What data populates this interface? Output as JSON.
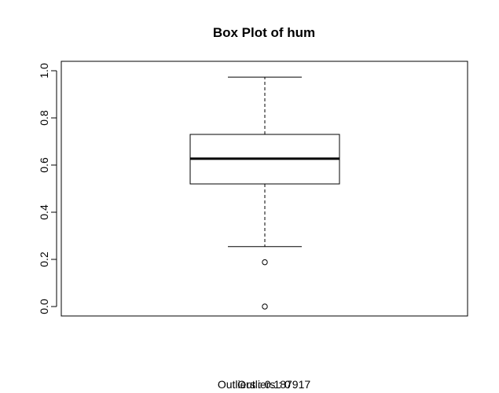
{
  "chart_data": {
    "type": "box",
    "title": "Box Plot of  hum",
    "xlabel": "",
    "ylabel": "",
    "ylim": [
      0.0,
      1.0
    ],
    "y_ticks": [
      0.0,
      0.2,
      0.4,
      0.6,
      0.8,
      1.0
    ],
    "y_tick_labels": [
      "0.0",
      "0.2",
      "0.4",
      "0.6",
      "0.8",
      "1.0"
    ],
    "grid": false,
    "box": {
      "min_whisker": 0.254,
      "q1": 0.52,
      "median": 0.627,
      "q3": 0.73,
      "max_whisker": 0.973,
      "outliers": [
        0.187917,
        0.0
      ]
    },
    "footer_texts": [
      "Outliers : 0",
      "Outliers : 0.187917"
    ]
  },
  "colors": {
    "background": "#ffffff",
    "foreground": "#000000"
  }
}
